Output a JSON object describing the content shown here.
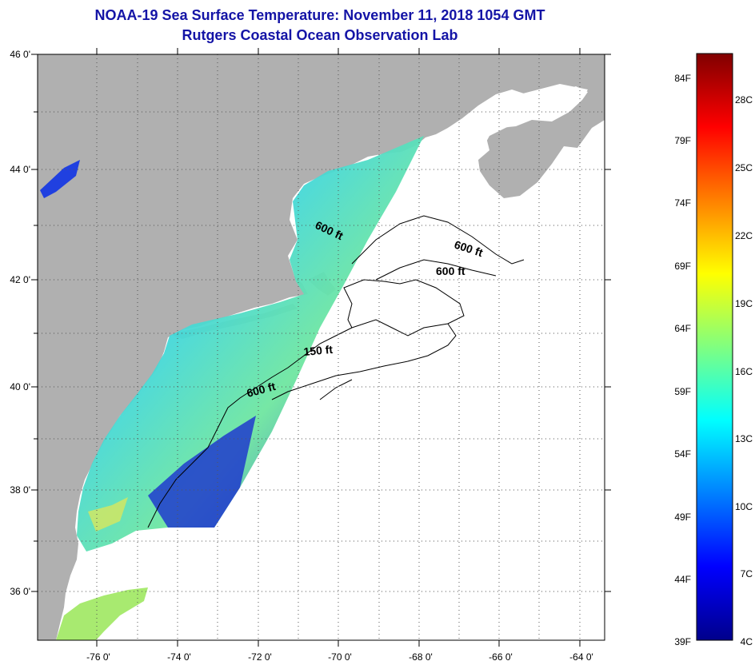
{
  "title": "NOAA-19 Sea Surface Temperature:  November 11, 2018 1054 GMT",
  "subtitle": "Rutgers Coastal Ocean Observation Lab",
  "map": {
    "lat_labels": [
      "46 0'",
      "44 0'",
      "42 0'",
      "40 0'",
      "38 0'",
      "36 0'"
    ],
    "lon_labels": [
      "-76 0'",
      "-74 0'",
      "-72 0'",
      "-70 0'",
      "-68 0'",
      "-66 0'",
      "-64 0'"
    ],
    "contour_labels": [
      "600 ft",
      "600 ft",
      "600 ft",
      "150 ft",
      "600 ft"
    ],
    "colors": {
      "land": "#b0b0b0",
      "ocean_nodata": "#ffffff",
      "grid": "#555555",
      "title": "#1414a6"
    }
  },
  "colorbar": {
    "fahrenheit_labels": [
      "84F",
      "79F",
      "74F",
      "69F",
      "64F",
      "59F",
      "54F",
      "49F",
      "44F",
      "39F"
    ],
    "celsius_labels": [
      "28C",
      "25C",
      "22C",
      "19C",
      "16C",
      "13C",
      "10C",
      "7C",
      "4C"
    ],
    "scale_colors": [
      "#00008b",
      "#0000ff",
      "#0080ff",
      "#00ffff",
      "#80ff80",
      "#ffff00",
      "#ff8000",
      "#ff0000",
      "#800000"
    ]
  }
}
